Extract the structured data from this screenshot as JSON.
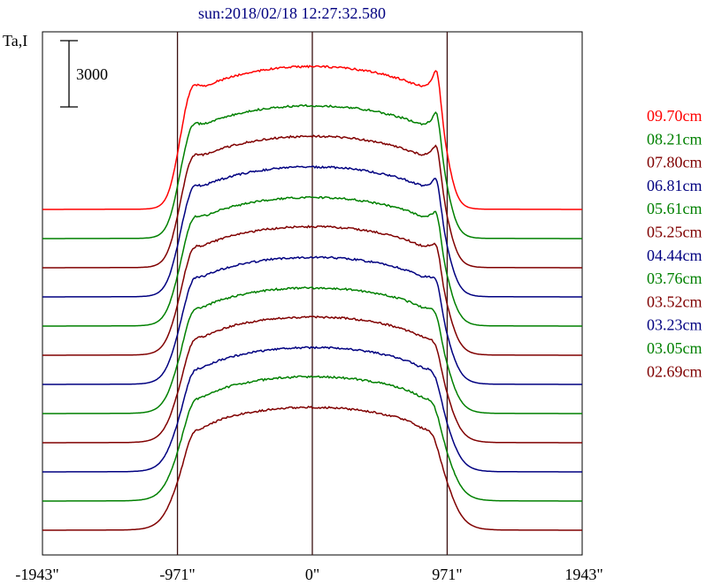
{
  "chart_data": {
    "type": "line",
    "title": "sun:2018/02/18 12:27:32.580",
    "ylabel": "Ta,I",
    "scale_bar_label": "3000",
    "scale_bar_value": 3000,
    "x_ticks": [
      {
        "value": -1943,
        "label": "-1943\""
      },
      {
        "value": -971,
        "label": "-971\""
      },
      {
        "value": 0,
        "label": "0\""
      },
      {
        "value": 971,
        "label": "971\""
      },
      {
        "value": 1943,
        "label": "1943\""
      }
    ],
    "xlim": [
      -1943,
      1943
    ],
    "vertical_lines_at": [
      -971,
      0,
      971
    ],
    "legend_placement": "right",
    "colors": {
      "red": "#ff0000",
      "green": "#008000",
      "maroon": "#800000",
      "navy": "#000080"
    },
    "series": [
      {
        "name": "09.70cm",
        "color": "#ff0000",
        "peak": 1.0,
        "limb_spike": 0.065
      },
      {
        "name": "08.21cm",
        "color": "#008000",
        "peak": 0.93,
        "limb_spike": 0.06
      },
      {
        "name": "07.80cm",
        "color": "#800000",
        "peak": 0.92,
        "limb_spike": 0.055
      },
      {
        "name": "06.81cm",
        "color": "#000080",
        "peak": 0.91,
        "limb_spike": 0.05
      },
      {
        "name": "05.61cm",
        "color": "#008000",
        "peak": 0.9,
        "limb_spike": 0.045
      },
      {
        "name": "05.25cm",
        "color": "#800000",
        "peak": 0.9,
        "limb_spike": 0.04
      },
      {
        "name": "04.44cm",
        "color": "#000080",
        "peak": 0.89,
        "limb_spike": 0.03
      },
      {
        "name": "03.76cm",
        "color": "#008000",
        "peak": 0.88,
        "limb_spike": 0.02
      },
      {
        "name": "03.52cm",
        "color": "#800000",
        "peak": 0.88,
        "limb_spike": 0.015
      },
      {
        "name": "03.23cm",
        "color": "#000080",
        "peak": 0.87,
        "limb_spike": 0.01
      },
      {
        "name": "03.05cm",
        "color": "#008000",
        "peak": 0.87,
        "limb_spike": 0.005
      },
      {
        "name": "02.69cm",
        "color": "#800000",
        "peak": 0.86,
        "limb_spike": 0.0
      }
    ]
  }
}
